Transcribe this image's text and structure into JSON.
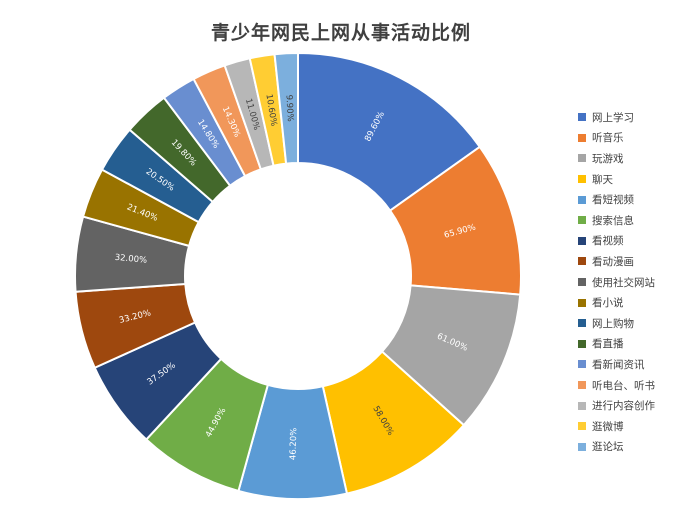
{
  "chart_data": {
    "type": "pie",
    "title": "青少年网民上网从事活动比例",
    "legend_position": "right",
    "categories": [
      "网上学习",
      "听音乐",
      "玩游戏",
      "聊天",
      "看短视频",
      "搜索信息",
      "看视频",
      "看动漫画",
      "使用社交网站",
      "看小说",
      "网上购物",
      "看直播",
      "看新闻资讯",
      "听电台、听书",
      "进行内容创作",
      "逛微博",
      "逛论坛"
    ],
    "values": [
      89.6,
      65.9,
      61.0,
      58.0,
      46.2,
      44.9,
      37.5,
      33.2,
      32.0,
      21.4,
      20.5,
      19.8,
      14.8,
      14.3,
      11.0,
      10.6,
      9.9
    ],
    "data_labels": [
      "89.60%",
      "65.90%",
      "61.00%",
      "58.00%",
      "46.20%",
      "44.90%",
      "37.50%",
      "33.20%",
      "32.00%",
      "21.40%",
      "20.50%",
      "19.80%",
      "14.80%",
      "14.30%",
      "11.00%",
      "10.60%",
      "9.90%"
    ],
    "colors": [
      "#4472C4",
      "#ED7D31",
      "#A5A5A5",
      "#FFC000",
      "#5B9BD5",
      "#70AD47",
      "#264478",
      "#9E480E",
      "#636363",
      "#997300",
      "#255E91",
      "#43682B",
      "#698ED0",
      "#F1975A",
      "#B7B7B7",
      "#FFCD33",
      "#7CAFDD"
    ],
    "label_colors": [
      "#ffffff",
      "#ffffff",
      "#ffffff",
      "#404040",
      "#ffffff",
      "#ffffff",
      "#ffffff",
      "#ffffff",
      "#ffffff",
      "#ffffff",
      "#ffffff",
      "#ffffff",
      "#ffffff",
      "#ffffff",
      "#404040",
      "#404040",
      "#404040"
    ]
  }
}
